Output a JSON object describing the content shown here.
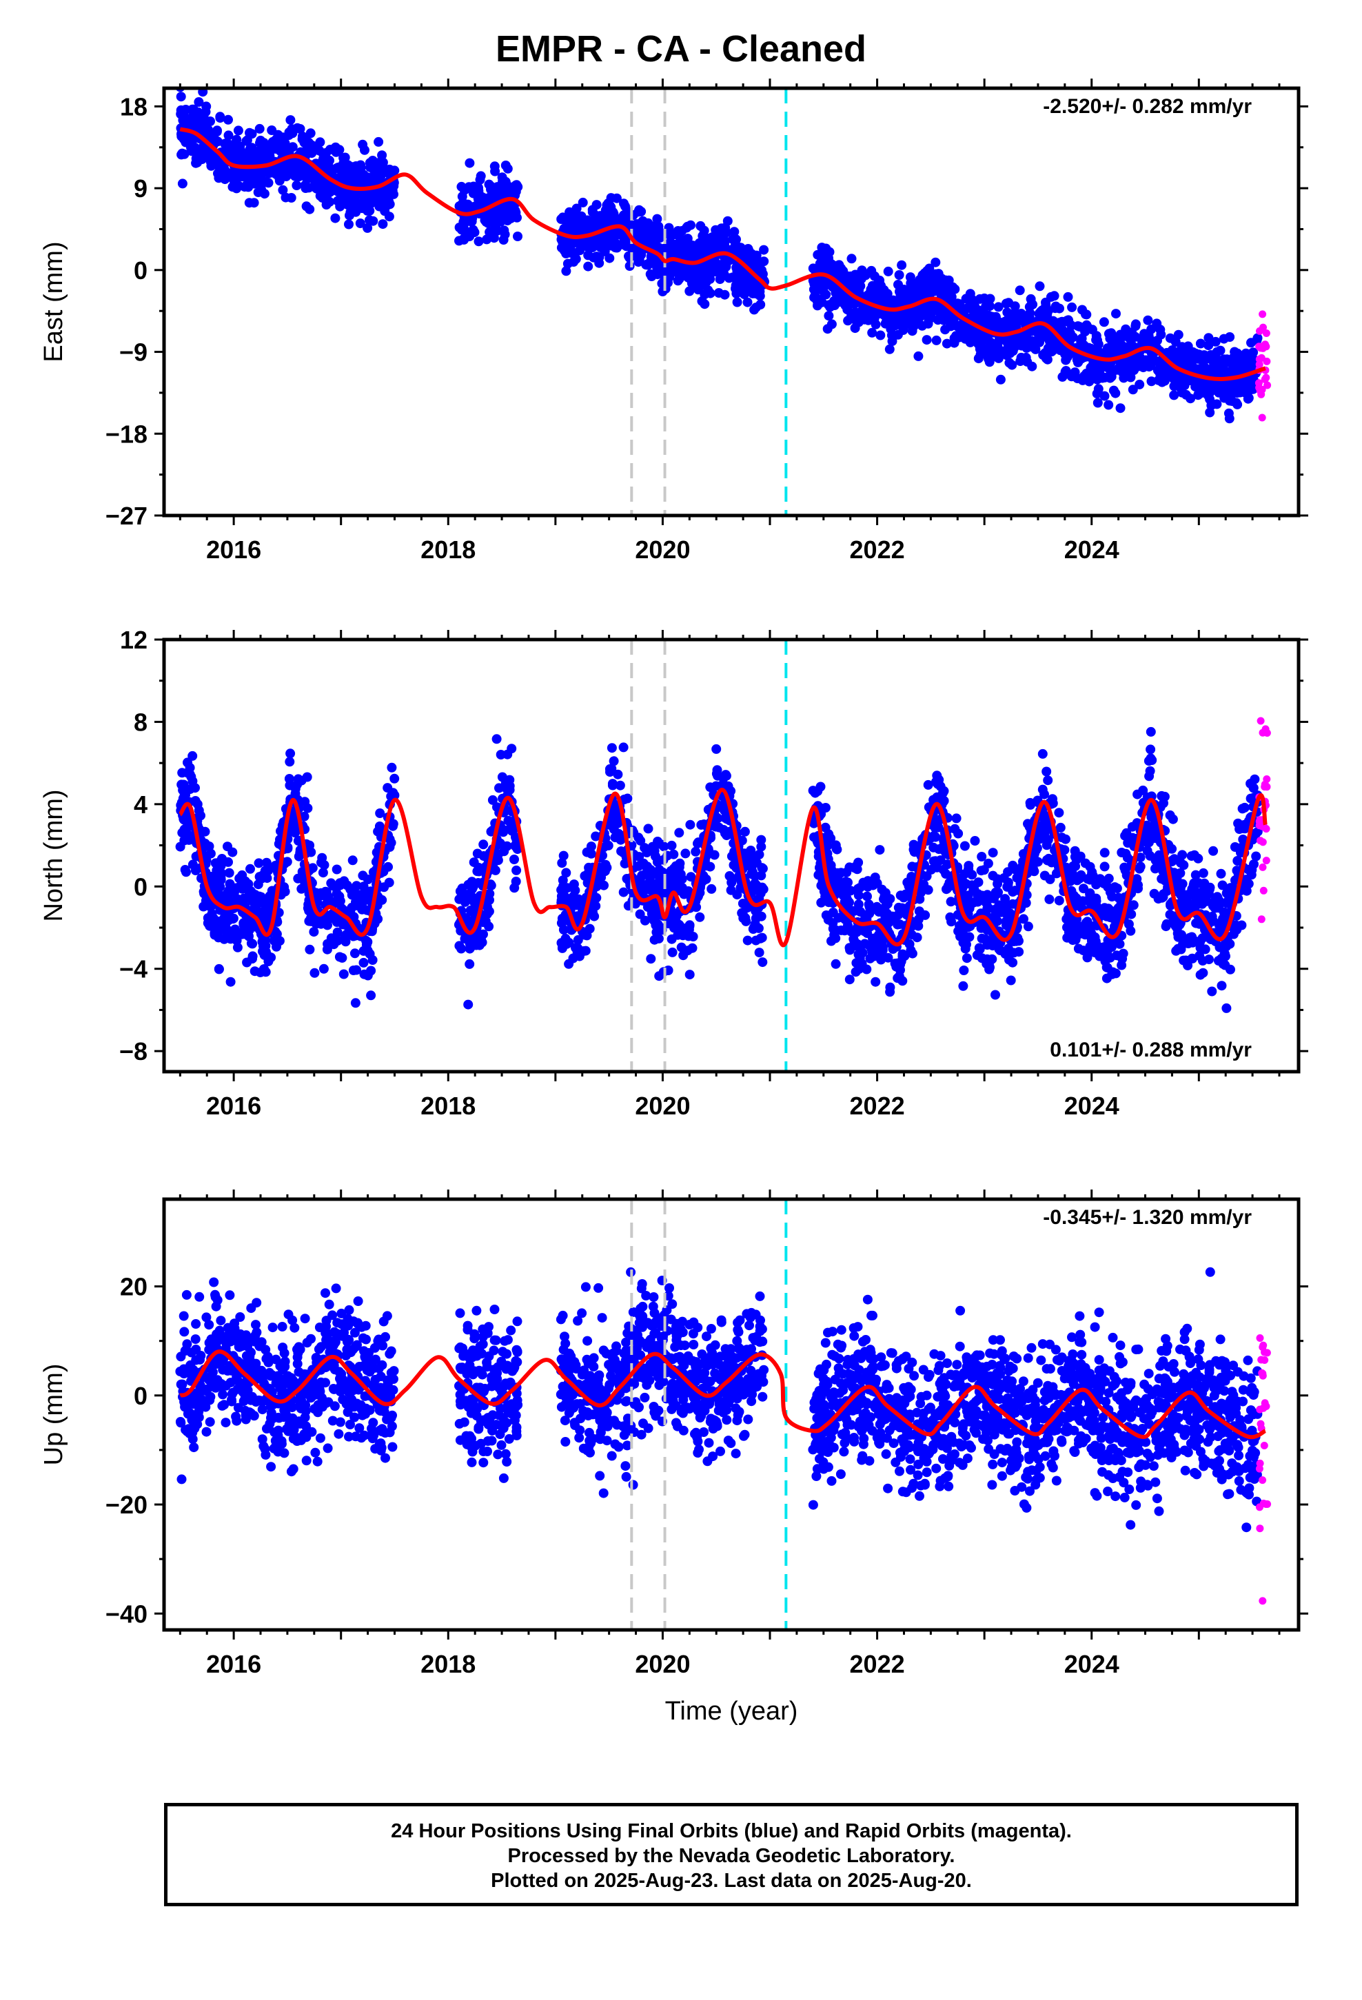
{
  "title": "EMPR  - CA - Cleaned",
  "x_axis_title": "Time (year)",
  "footer": {
    "line1": "24 Hour Positions Using Final Orbits (blue) and Rapid Orbits (magenta).",
    "line2": "Processed by the Nevada Geodetic Laboratory.",
    "line3": "Plotted on 2025-Aug-23. Last data on 2025-Aug-20."
  },
  "colors": {
    "final_orbits": "#0000ff",
    "rapid_orbits": "#ff00ff",
    "model": "#ff0000",
    "equipment_change": "#c8c8c8",
    "earthquake": "#00e5ee"
  },
  "vertical_markers": [
    {
      "x": 2019.71,
      "color": "#c8c8c8"
    },
    {
      "x": 2020.02,
      "color": "#c8c8c8"
    },
    {
      "x": 2021.15,
      "color": "#00e5ee"
    }
  ],
  "chart_data": [
    {
      "type": "scatter",
      "component": "East",
      "ylabel": "East (mm)",
      "rate_label": "-2.520+/- 0.282 mm/yr",
      "rate_position": "top-right",
      "xlim": [
        2015.35,
        2025.93
      ],
      "ylim": [
        -27,
        20
      ],
      "xticks": [
        2016,
        2018,
        2020,
        2022,
        2024
      ],
      "yticks": [
        18,
        9,
        0,
        -9,
        -18,
        -27
      ],
      "ytick_labels": [
        "18",
        "9",
        "0",
        "−9",
        "−18",
        "−27"
      ],
      "grid": false,
      "series": [
        {
          "kind": "points",
          "color": "#0000ff",
          "segments": [
            [
              2015.5,
              2017.5
            ],
            [
              2018.1,
              2018.65
            ],
            [
              2019.05,
              2020.95
            ],
            [
              2021.4,
              2025.55
            ]
          ],
          "noise": 1.7
        },
        {
          "kind": "points",
          "color": "#ff00ff",
          "segments": [
            [
              2025.56,
              2025.64
            ]
          ],
          "noise": 3
        },
        {
          "kind": "line",
          "color": "#ff0000",
          "x": [
            2015.5,
            2015.65,
            2015.85,
            2016.0,
            2016.3,
            2016.6,
            2016.9,
            2017.1,
            2017.35,
            2017.6,
            2017.8,
            2018.1,
            2018.3,
            2018.6,
            2018.8,
            2019.1,
            2019.3,
            2019.6,
            2019.75,
            2019.95,
            2020.02,
            2020.1,
            2020.3,
            2020.6,
            2020.9,
            2021.0,
            2021.15,
            2021.5,
            2021.8,
            2022.1,
            2022.3,
            2022.55,
            2022.8,
            2023.1,
            2023.3,
            2023.55,
            2023.8,
            2024.1,
            2024.3,
            2024.55,
            2024.8,
            2025.1,
            2025.35,
            2025.62
          ],
          "y": [
            15.5,
            15.0,
            13.0,
            11.5,
            11.5,
            12.5,
            10.0,
            9.0,
            9.2,
            10.5,
            8.5,
            6.3,
            6.5,
            7.8,
            5.5,
            3.8,
            3.8,
            4.8,
            3.0,
            1.8,
            1.0,
            1.2,
            0.8,
            1.8,
            -1.0,
            -2.0,
            -1.7,
            -0.5,
            -3.0,
            -4.3,
            -4.0,
            -3.2,
            -5.3,
            -7.0,
            -6.8,
            -5.9,
            -8.5,
            -9.8,
            -9.5,
            -8.6,
            -10.8,
            -11.9,
            -11.8,
            -10.8
          ]
        }
      ]
    },
    {
      "type": "scatter",
      "component": "North",
      "ylabel": "North (mm)",
      "rate_label": "0.101+/- 0.288 mm/yr",
      "rate_position": "bottom-right",
      "xlim": [
        2015.35,
        2025.93
      ],
      "ylim": [
        -9,
        12
      ],
      "xticks": [
        2016,
        2018,
        2020,
        2022,
        2024
      ],
      "yticks": [
        12,
        8,
        4,
        0,
        -4,
        -8
      ],
      "ytick_labels": [
        "12",
        "8",
        "4",
        "0",
        "−4",
        "−8"
      ],
      "grid": false,
      "series": [
        {
          "kind": "points",
          "color": "#0000ff",
          "segments": [
            [
              2015.5,
              2017.5
            ],
            [
              2018.1,
              2018.65
            ],
            [
              2019.05,
              2020.95
            ],
            [
              2021.4,
              2025.55
            ]
          ],
          "noise": 1.3
        },
        {
          "kind": "points",
          "color": "#ff00ff",
          "segments": [
            [
              2025.56,
              2025.64
            ]
          ],
          "noise": 2.5
        },
        {
          "kind": "line",
          "color": "#ff0000",
          "x": [
            2015.5,
            2015.6,
            2015.75,
            2015.9,
            2016.05,
            2016.2,
            2016.35,
            2016.55,
            2016.75,
            2016.9,
            2017.05,
            2017.25,
            2017.5,
            2017.75,
            2017.9,
            2018.05,
            2018.25,
            2018.55,
            2018.8,
            2018.95,
            2019.1,
            2019.25,
            2019.55,
            2019.75,
            2019.95,
            2020.02,
            2020.1,
            2020.25,
            2020.55,
            2020.8,
            2021.0,
            2021.15,
            2021.4,
            2021.55,
            2021.8,
            2022.0,
            2022.25,
            2022.55,
            2022.8,
            2023.0,
            2023.25,
            2023.55,
            2023.8,
            2024.0,
            2024.25,
            2024.55,
            2024.8,
            2025.0,
            2025.25,
            2025.55,
            2025.62
          ],
          "y": [
            3.5,
            3.8,
            0.0,
            -1.0,
            -1.0,
            -1.5,
            -2.0,
            4.2,
            -1.0,
            -1.0,
            -1.5,
            -2.0,
            4.2,
            -0.5,
            -1.0,
            -1.0,
            -2.0,
            4.3,
            -0.8,
            -1.0,
            -1.0,
            -1.8,
            4.5,
            -0.3,
            -0.5,
            -1.5,
            -0.3,
            -1.0,
            4.7,
            -0.5,
            -0.8,
            -2.7,
            3.8,
            0.0,
            -1.7,
            -1.8,
            -2.5,
            4.0,
            -1.3,
            -1.5,
            -2.3,
            4.1,
            -1.0,
            -1.2,
            -2.2,
            4.2,
            -1.2,
            -1.3,
            -2.3,
            4.2,
            3.0
          ]
        }
      ]
    },
    {
      "type": "scatter",
      "component": "Up",
      "ylabel": "Up (mm)",
      "rate_label": "-0.345+/- 1.320 mm/yr",
      "rate_position": "top-right",
      "xlim": [
        2015.35,
        2025.93
      ],
      "ylim": [
        -43,
        36
      ],
      "xticks": [
        2016,
        2018,
        2020,
        2022,
        2024
      ],
      "yticks": [
        20,
        0,
        -20,
        -40
      ],
      "ytick_labels": [
        "20",
        "0",
        "−20",
        "−40"
      ],
      "grid": false,
      "series": [
        {
          "kind": "points",
          "color": "#0000ff",
          "segments": [
            [
              2015.5,
              2017.5
            ],
            [
              2018.1,
              2018.65
            ],
            [
              2019.05,
              2020.95
            ],
            [
              2021.4,
              2025.55
            ]
          ],
          "noise": 6
        },
        {
          "kind": "points",
          "color": "#ff00ff",
          "segments": [
            [
              2025.56,
              2025.64
            ]
          ],
          "noise": 14
        },
        {
          "kind": "line",
          "color": "#ff0000",
          "x": [
            2015.5,
            2015.6,
            2015.85,
            2016.1,
            2016.4,
            2016.6,
            2016.9,
            2017.1,
            2017.4,
            2017.6,
            2017.9,
            2018.1,
            2018.4,
            2018.6,
            2018.9,
            2019.1,
            2019.4,
            2019.6,
            2019.9,
            2020.1,
            2020.4,
            2020.6,
            2020.9,
            2021.1,
            2021.15,
            2021.4,
            2021.55,
            2021.9,
            2022.1,
            2022.45,
            2022.6,
            2022.9,
            2023.1,
            2023.45,
            2023.6,
            2023.9,
            2024.1,
            2024.45,
            2024.6,
            2024.9,
            2025.1,
            2025.45,
            2025.62
          ],
          "y": [
            0.0,
            1.0,
            8.0,
            4.0,
            -1.0,
            1.0,
            7.0,
            4.0,
            -1.5,
            1.0,
            7.0,
            3.0,
            -1.5,
            1.0,
            6.5,
            3.0,
            -1.8,
            1.5,
            7.5,
            5.0,
            0.0,
            2.5,
            7.5,
            4.0,
            -4.0,
            -6.5,
            -5.0,
            1.5,
            -2.0,
            -7.0,
            -5.0,
            1.5,
            -2.0,
            -7.0,
            -5.0,
            1.0,
            -2.5,
            -7.5,
            -5.5,
            0.5,
            -3.0,
            -7.5,
            -6.5
          ]
        }
      ]
    }
  ]
}
